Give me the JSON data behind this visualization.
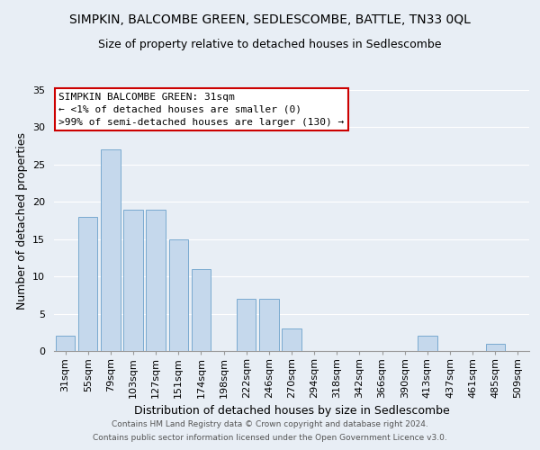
{
  "title": "SIMPKIN, BALCOMBE GREEN, SEDLESCOMBE, BATTLE, TN33 0QL",
  "subtitle": "Size of property relative to detached houses in Sedlescombe",
  "xlabel": "Distribution of detached houses by size in Sedlescombe",
  "ylabel": "Number of detached properties",
  "bar_color": "#c5d8ec",
  "bar_edge_color": "#7aaad0",
  "background_color": "#e8eef5",
  "grid_color": "#ffffff",
  "bins": [
    "31sqm",
    "55sqm",
    "79sqm",
    "103sqm",
    "127sqm",
    "151sqm",
    "174sqm",
    "198sqm",
    "222sqm",
    "246sqm",
    "270sqm",
    "294sqm",
    "318sqm",
    "342sqm",
    "366sqm",
    "390sqm",
    "413sqm",
    "437sqm",
    "461sqm",
    "485sqm",
    "509sqm"
  ],
  "values": [
    2,
    18,
    27,
    19,
    19,
    15,
    11,
    0,
    7,
    7,
    3,
    0,
    0,
    0,
    0,
    0,
    2,
    0,
    0,
    1,
    0
  ],
  "ylim": [
    0,
    35
  ],
  "yticks": [
    0,
    5,
    10,
    15,
    20,
    25,
    30,
    35
  ],
  "annotation_title": "SIMPKIN BALCOMBE GREEN: 31sqm",
  "annotation_line1": "← <1% of detached houses are smaller (0)",
  "annotation_line2": ">99% of semi-detached houses are larger (130) →",
  "annotation_box_color": "#ffffff",
  "annotation_box_edge": "#cc0000",
  "footer1": "Contains HM Land Registry data © Crown copyright and database right 2024.",
  "footer2": "Contains public sector information licensed under the Open Government Licence v3.0.",
  "title_fontsize": 10,
  "subtitle_fontsize": 9,
  "axis_label_fontsize": 9,
  "tick_fontsize": 8,
  "annotation_fontsize": 8,
  "footer_fontsize": 6.5
}
